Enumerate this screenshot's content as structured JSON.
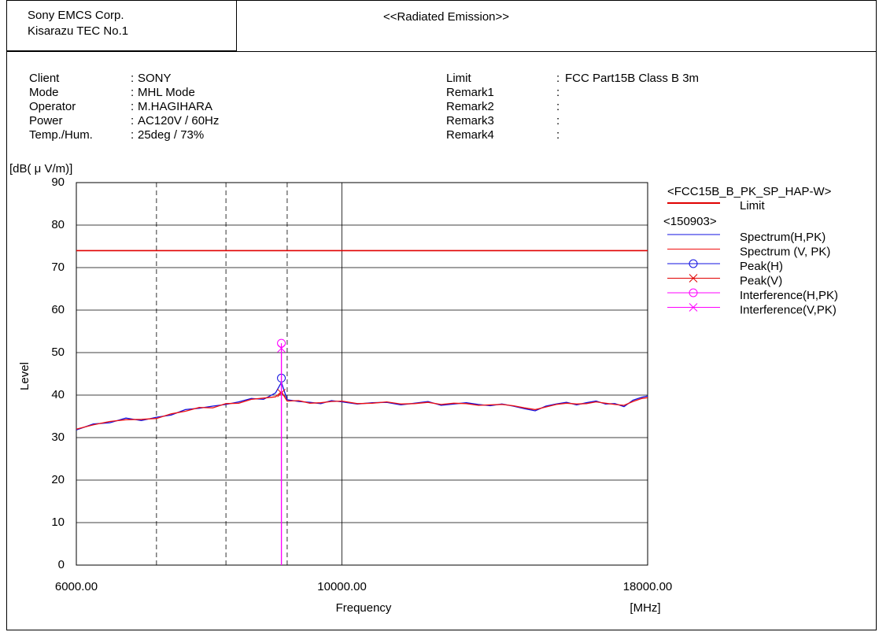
{
  "header": {
    "company": "Sony EMCS Corp.",
    "site": "Kisarazu TEC No.1",
    "title": "<<Radiated Emission>>"
  },
  "info": {
    "left": [
      {
        "label": "Client",
        "value": "SONY"
      },
      {
        "label": "Mode",
        "value": "MHL Mode"
      },
      {
        "label": "Operator",
        "value": "M.HAGIHARA"
      },
      {
        "label": "Power",
        "value": "AC120V / 60Hz"
      },
      {
        "label": "Temp./Hum.",
        "value": "25deg / 73%"
      }
    ],
    "right": [
      {
        "label": "Limit",
        "value": "FCC Part15B Class B 3m"
      },
      {
        "label": "Remark1"
      },
      {
        "label": "Remark2"
      },
      {
        "label": "Remark3"
      },
      {
        "label": "Remark4"
      }
    ]
  },
  "chart_data": {
    "type": "line",
    "y_unit": "[dB( μ V/m)]",
    "y_label": "Level",
    "x_label": "Frequency",
    "x_unit": "[MHz]",
    "x_scale": "log",
    "grid": true,
    "xlim": [
      6000,
      18000
    ],
    "ylim": [
      0,
      90
    ],
    "xticks": [
      {
        "value": 6000,
        "label": "6000.00"
      },
      {
        "value": 10000,
        "label": "10000.00"
      },
      {
        "value": 18000,
        "label": "18000.00"
      }
    ],
    "x_minor_grid": [
      7000,
      8000,
      9000
    ],
    "yticks": [
      0,
      10,
      20,
      30,
      40,
      50,
      60,
      70,
      80,
      90
    ],
    "legend_title": "<FCC15B_B_PK_SP_HAP-W>",
    "legend_group": "<150903>",
    "series": [
      {
        "name": "Limit",
        "color": "#e00000",
        "x": [
          6000,
          18000
        ],
        "values": [
          74,
          74
        ]
      },
      {
        "name": "Spectrum(H,PK)",
        "color": "#1010e0",
        "x": [
          6000,
          6200,
          6400,
          6600,
          6800,
          7000,
          7200,
          7400,
          7600,
          7800,
          8000,
          8200,
          8400,
          8600,
          8800,
          8900,
          9000,
          9200,
          9400,
          9600,
          9800,
          10000,
          10300,
          10600,
          10900,
          11200,
          11500,
          11800,
          12100,
          12400,
          12700,
          13000,
          13300,
          13600,
          13900,
          14200,
          14500,
          14800,
          15100,
          15400,
          15700,
          16000,
          16300,
          16600,
          16900,
          17200,
          17500,
          17800,
          18000
        ],
        "values": [
          31.8,
          33.2,
          33.5,
          34.6,
          34.0,
          34.8,
          35.3,
          36.6,
          36.9,
          37.4,
          37.8,
          38.4,
          39.2,
          39.0,
          40.5,
          43,
          38.9,
          38.5,
          38.3,
          38.0,
          38.7,
          38.4,
          37.9,
          38.2,
          38.3,
          37.7,
          38.1,
          38.5,
          37.6,
          37.9,
          38.2,
          37.8,
          37.5,
          37.9,
          37.4,
          36.8,
          36.3,
          37.4,
          37.9,
          38.3,
          37.7,
          38.2,
          38.6,
          37.9,
          38.0,
          37.3,
          38.8,
          39.5,
          39.8
        ]
      },
      {
        "name": "Spectrum (V, PK)",
        "color": "#f01010",
        "x": [
          6000,
          6200,
          6400,
          6600,
          6800,
          7000,
          7200,
          7400,
          7600,
          7800,
          8000,
          8200,
          8400,
          8600,
          8800,
          8900,
          9000,
          9200,
          9400,
          9600,
          9800,
          10000,
          10300,
          10600,
          10900,
          11200,
          11500,
          11800,
          12100,
          12400,
          12700,
          13000,
          13300,
          13600,
          13900,
          14200,
          14500,
          14800,
          15100,
          15400,
          15700,
          16000,
          16300,
          16600,
          16900,
          17200,
          17500,
          17800,
          18000
        ],
        "values": [
          32.0,
          33.0,
          33.8,
          34.2,
          34.3,
          34.5,
          35.6,
          36.2,
          37.1,
          37.0,
          38.0,
          38.1,
          39.0,
          39.3,
          39.6,
          40.8,
          38.6,
          38.7,
          38.1,
          38.2,
          38.5,
          38.6,
          38.0,
          38.1,
          38.4,
          37.9,
          38.0,
          38.3,
          37.8,
          38.1,
          38.0,
          37.6,
          37.7,
          37.8,
          37.5,
          37.0,
          36.6,
          37.2,
          37.8,
          38.1,
          37.9,
          38.0,
          38.4,
          38.1,
          37.8,
          37.6,
          38.5,
          39.2,
          39.4
        ]
      },
      {
        "name": "Peak(H)",
        "color": "#1010e0",
        "marker": "circle",
        "x": [
          8900
        ],
        "values": [
          44.0
        ]
      },
      {
        "name": "Peak(V)",
        "color": "#e00000",
        "marker": "cross",
        "x": [
          8900
        ],
        "values": [
          40.5
        ]
      },
      {
        "name": "Interference(H,PK)",
        "color": "#ff00ff",
        "marker": "circle",
        "stem": true,
        "x": [
          8900
        ],
        "values": [
          52.2
        ]
      },
      {
        "name": "Interference(V,PK)",
        "color": "#ff00ff",
        "marker": "cross",
        "stem": true,
        "x": [
          8900
        ],
        "values": [
          51.0
        ]
      }
    ]
  }
}
